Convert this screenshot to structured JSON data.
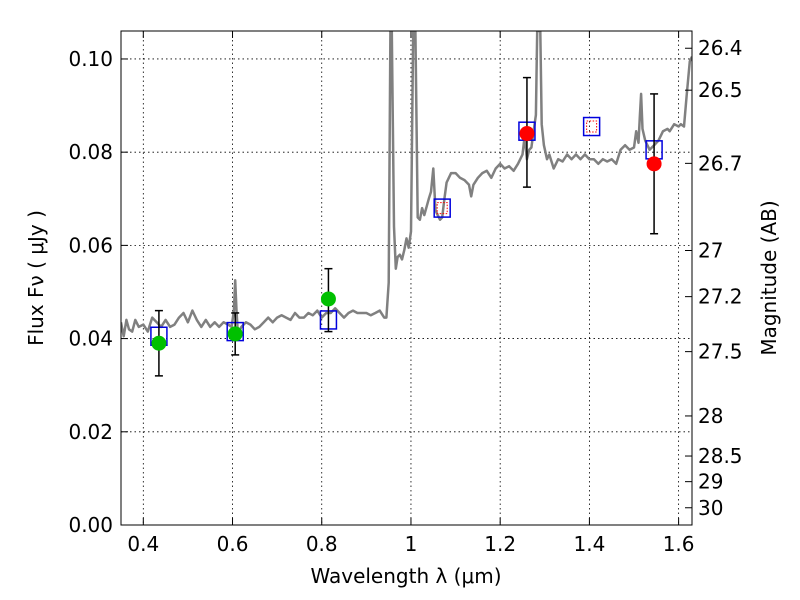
{
  "chart_data": {
    "type": "scatter",
    "xlabel": "Wavelength  λ (μm)",
    "ylabel": "Flux  Fν  ( μJy )",
    "ylabel_right": "Magnitude (AB)",
    "xlim": [
      0.35,
      1.63
    ],
    "ylim": [
      0.0,
      0.106
    ],
    "grid": true,
    "x_ticks": [
      {
        "value": 0.4,
        "label": "0.4"
      },
      {
        "value": 0.6,
        "label": "0.6"
      },
      {
        "value": 0.8,
        "label": "0.8"
      },
      {
        "value": 1.0,
        "label": "1"
      },
      {
        "value": 1.2,
        "label": "1.2"
      },
      {
        "value": 1.4,
        "label": "1.4"
      },
      {
        "value": 1.6,
        "label": "1.6"
      }
    ],
    "y_ticks": [
      {
        "value": 0.0,
        "label": "0.00"
      },
      {
        "value": 0.02,
        "label": "0.02"
      },
      {
        "value": 0.04,
        "label": "0.04"
      },
      {
        "value": 0.06,
        "label": "0.06"
      },
      {
        "value": 0.08,
        "label": "0.08"
      },
      {
        "value": 0.1,
        "label": "0.10"
      }
    ],
    "right_ticks": [
      {
        "label": "26.4",
        "flux": 0.1023
      },
      {
        "label": "26.5",
        "flux": 0.0933
      },
      {
        "label": "26.7",
        "flux": 0.0776
      },
      {
        "label": "27",
        "flux": 0.0589
      },
      {
        "label": "27.2",
        "flux": 0.049
      },
      {
        "label": "27.5",
        "flux": 0.0372
      },
      {
        "label": "28",
        "flux": 0.0234
      },
      {
        "label": "28.5",
        "flux": 0.0148
      },
      {
        "label": "29",
        "flux": 0.0093
      },
      {
        "label": "30",
        "flux": 0.0037
      }
    ],
    "template_spectrum": {
      "color": "#808080",
      "points": [
        [
          0.35,
          0.0435
        ],
        [
          0.356,
          0.0405
        ],
        [
          0.362,
          0.044
        ],
        [
          0.368,
          0.042
        ],
        [
          0.375,
          0.0415
        ],
        [
          0.382,
          0.044
        ],
        [
          0.39,
          0.0425
        ],
        [
          0.4,
          0.043
        ],
        [
          0.41,
          0.0415
        ],
        [
          0.42,
          0.0445
        ],
        [
          0.43,
          0.0435
        ],
        [
          0.44,
          0.0425
        ],
        [
          0.45,
          0.044
        ],
        [
          0.46,
          0.0425
        ],
        [
          0.47,
          0.043
        ],
        [
          0.48,
          0.0445
        ],
        [
          0.49,
          0.0455
        ],
        [
          0.5,
          0.0435
        ],
        [
          0.51,
          0.046
        ],
        [
          0.52,
          0.044
        ],
        [
          0.53,
          0.0425
        ],
        [
          0.54,
          0.044
        ],
        [
          0.55,
          0.0425
        ],
        [
          0.56,
          0.0435
        ],
        [
          0.57,
          0.0425
        ],
        [
          0.58,
          0.0435
        ],
        [
          0.59,
          0.043
        ],
        [
          0.598,
          0.0425
        ],
        [
          0.603,
          0.046
        ],
        [
          0.606,
          0.0525
        ],
        [
          0.609,
          0.046
        ],
        [
          0.612,
          0.041
        ],
        [
          0.62,
          0.0425
        ],
        [
          0.63,
          0.0435
        ],
        [
          0.64,
          0.043
        ],
        [
          0.65,
          0.042
        ],
        [
          0.66,
          0.0425
        ],
        [
          0.67,
          0.0435
        ],
        [
          0.68,
          0.0445
        ],
        [
          0.69,
          0.0435
        ],
        [
          0.7,
          0.0445
        ],
        [
          0.71,
          0.045
        ],
        [
          0.72,
          0.0445
        ],
        [
          0.73,
          0.044
        ],
        [
          0.74,
          0.0455
        ],
        [
          0.75,
          0.0445
        ],
        [
          0.76,
          0.0445
        ],
        [
          0.77,
          0.0455
        ],
        [
          0.78,
          0.045
        ],
        [
          0.79,
          0.046
        ],
        [
          0.8,
          0.0445
        ],
        [
          0.81,
          0.0455
        ],
        [
          0.82,
          0.0455
        ],
        [
          0.83,
          0.0465
        ],
        [
          0.84,
          0.0455
        ],
        [
          0.85,
          0.0445
        ],
        [
          0.86,
          0.0455
        ],
        [
          0.87,
          0.046
        ],
        [
          0.88,
          0.0455
        ],
        [
          0.89,
          0.0455
        ],
        [
          0.9,
          0.0455
        ],
        [
          0.91,
          0.045
        ],
        [
          0.92,
          0.0455
        ],
        [
          0.93,
          0.046
        ],
        [
          0.94,
          0.0445
        ],
        [
          0.945,
          0.0445
        ],
        [
          0.95,
          0.052
        ],
        [
          0.954,
          0.106
        ],
        [
          0.957,
          0.106
        ],
        [
          0.962,
          0.064
        ],
        [
          0.966,
          0.055
        ],
        [
          0.97,
          0.0575
        ],
        [
          0.975,
          0.058
        ],
        [
          0.98,
          0.057
        ],
        [
          0.985,
          0.059
        ],
        [
          0.99,
          0.0615
        ],
        [
          0.995,
          0.0595
        ],
        [
          1.0,
          0.063
        ],
        [
          1.005,
          0.106
        ],
        [
          1.01,
          0.106
        ],
        [
          1.015,
          0.066
        ],
        [
          1.02,
          0.0655
        ],
        [
          1.025,
          0.068
        ],
        [
          1.03,
          0.0665
        ],
        [
          1.04,
          0.07
        ],
        [
          1.045,
          0.0715
        ],
        [
          1.05,
          0.0765
        ],
        [
          1.055,
          0.0675
        ],
        [
          1.06,
          0.0665
        ],
        [
          1.065,
          0.0655
        ],
        [
          1.07,
          0.066
        ],
        [
          1.075,
          0.07
        ],
        [
          1.08,
          0.0735
        ],
        [
          1.09,
          0.0755
        ],
        [
          1.1,
          0.0755
        ],
        [
          1.11,
          0.0745
        ],
        [
          1.12,
          0.074
        ],
        [
          1.13,
          0.073
        ],
        [
          1.135,
          0.0705
        ],
        [
          1.14,
          0.073
        ],
        [
          1.15,
          0.0745
        ],
        [
          1.16,
          0.0755
        ],
        [
          1.17,
          0.076
        ],
        [
          1.18,
          0.0745
        ],
        [
          1.19,
          0.0765
        ],
        [
          1.2,
          0.0775
        ],
        [
          1.21,
          0.0765
        ],
        [
          1.22,
          0.077
        ],
        [
          1.23,
          0.076
        ],
        [
          1.24,
          0.0775
        ],
        [
          1.25,
          0.0795
        ],
        [
          1.255,
          0.0835
        ],
        [
          1.26,
          0.0785
        ],
        [
          1.265,
          0.0805
        ],
        [
          1.27,
          0.081
        ],
        [
          1.275,
          0.0845
        ],
        [
          1.28,
          0.088
        ],
        [
          1.283,
          0.106
        ],
        [
          1.29,
          0.106
        ],
        [
          1.293,
          0.086
        ],
        [
          1.298,
          0.0815
        ],
        [
          1.305,
          0.0785
        ],
        [
          1.31,
          0.0795
        ],
        [
          1.32,
          0.0765
        ],
        [
          1.33,
          0.0785
        ],
        [
          1.34,
          0.078
        ],
        [
          1.35,
          0.0795
        ],
        [
          1.36,
          0.0785
        ],
        [
          1.37,
          0.0795
        ],
        [
          1.38,
          0.0785
        ],
        [
          1.39,
          0.0795
        ],
        [
          1.4,
          0.0785
        ],
        [
          1.41,
          0.0785
        ],
        [
          1.42,
          0.0775
        ],
        [
          1.43,
          0.0785
        ],
        [
          1.44,
          0.078
        ],
        [
          1.45,
          0.0785
        ],
        [
          1.46,
          0.0775
        ],
        [
          1.47,
          0.0805
        ],
        [
          1.48,
          0.0815
        ],
        [
          1.49,
          0.0805
        ],
        [
          1.5,
          0.081
        ],
        [
          1.505,
          0.0845
        ],
        [
          1.51,
          0.082
        ],
        [
          1.513,
          0.0875
        ],
        [
          1.516,
          0.0925
        ],
        [
          1.519,
          0.085
        ],
        [
          1.525,
          0.0825
        ],
        [
          1.535,
          0.0805
        ],
        [
          1.545,
          0.0815
        ],
        [
          1.555,
          0.0825
        ],
        [
          1.565,
          0.0845
        ],
        [
          1.575,
          0.085
        ],
        [
          1.58,
          0.0845
        ],
        [
          1.59,
          0.086
        ],
        [
          1.6,
          0.0855
        ],
        [
          1.605,
          0.086
        ],
        [
          1.612,
          0.0855
        ],
        [
          1.618,
          0.092
        ],
        [
          1.625,
          0.0995
        ],
        [
          1.63,
          0.1005
        ]
      ]
    },
    "series": [
      {
        "name": "",
        "marker": "circle",
        "color": "#00c000",
        "points": [
          {
            "x": 0.435,
            "y": 0.039,
            "err_low": 0.032,
            "err_high": 0.046
          },
          {
            "x": 0.606,
            "y": 0.041,
            "err_low": 0.0365,
            "err_high": 0.0455
          },
          {
            "x": 0.815,
            "y": 0.0485,
            "err_low": 0.0415,
            "err_high": 0.055
          }
        ]
      },
      {
        "name": "",
        "marker": "circle",
        "color": "#ff0000",
        "points": [
          {
            "x": 1.26,
            "y": 0.084,
            "err_low": 0.0725,
            "err_high": 0.096
          },
          {
            "x": 1.545,
            "y": 0.0775,
            "err_low": 0.0625,
            "err_high": 0.0925
          }
        ]
      },
      {
        "name": "",
        "marker": "square-open",
        "color": "#0000dd",
        "points": [
          {
            "x": 0.435,
            "y": 0.0405
          },
          {
            "x": 0.606,
            "y": 0.0415
          },
          {
            "x": 0.815,
            "y": 0.044
          },
          {
            "x": 1.07,
            "y": 0.068
          },
          {
            "x": 1.26,
            "y": 0.0845
          },
          {
            "x": 1.405,
            "y": 0.0855
          },
          {
            "x": 1.545,
            "y": 0.0805
          }
        ]
      },
      {
        "name": "",
        "marker": "square-open-small",
        "color": "#ff0000",
        "points": [
          {
            "x": 1.07,
            "y": 0.068
          },
          {
            "x": 1.405,
            "y": 0.0855
          }
        ]
      }
    ]
  }
}
